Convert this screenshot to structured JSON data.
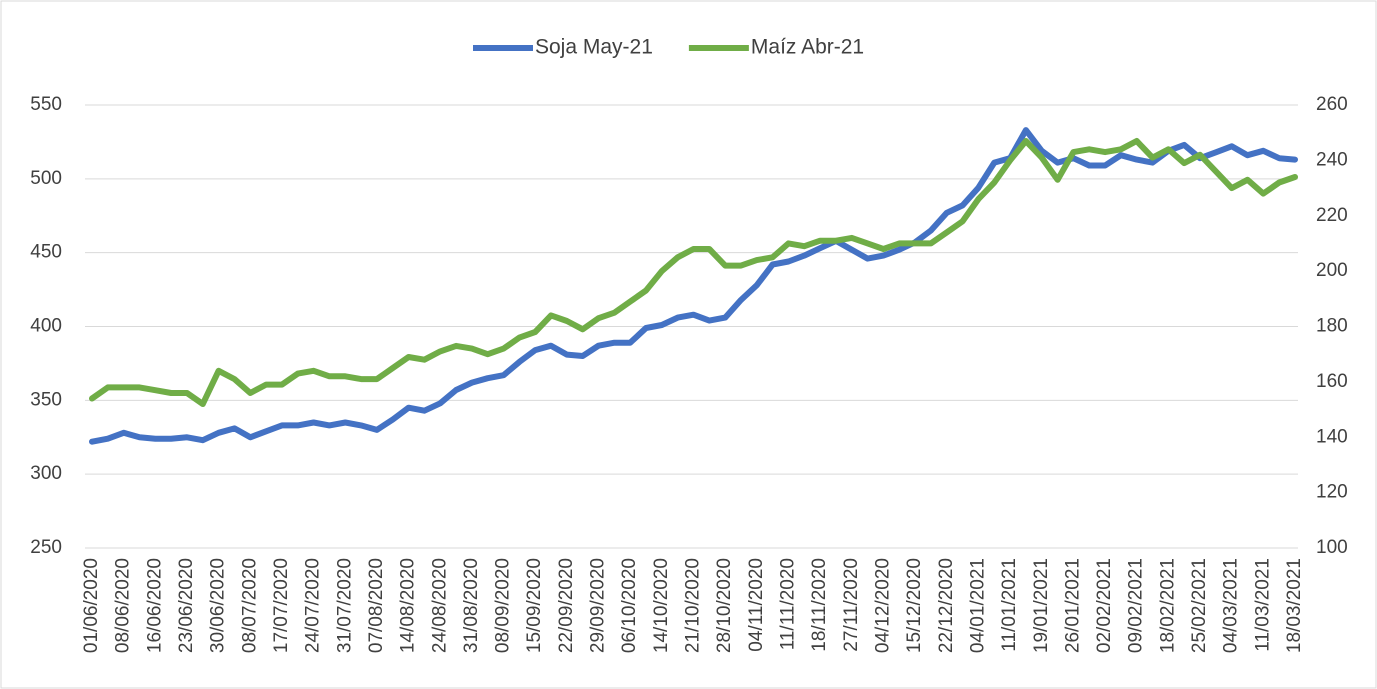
{
  "chart_data": {
    "type": "line",
    "categories": [
      "01/06/2020",
      null,
      "08/06/2020",
      null,
      "16/06/2020",
      null,
      "23/06/2020",
      null,
      "30/06/2020",
      null,
      "08/07/2020",
      null,
      "17/07/2020",
      null,
      "24/07/2020",
      null,
      "31/07/2020",
      null,
      "07/08/2020",
      null,
      "14/08/2020",
      null,
      "24/08/2020",
      null,
      "31/08/2020",
      null,
      "08/09/2020",
      null,
      "15/09/2020",
      null,
      "22/09/2020",
      null,
      "29/09/2020",
      null,
      "06/10/2020",
      null,
      "14/10/2020",
      null,
      "21/10/2020",
      null,
      "28/10/2020",
      null,
      "04/11/2020",
      null,
      "11/11/2020",
      null,
      "18/11/2020",
      null,
      "27/11/2020",
      null,
      "04/12/2020",
      null,
      "15/12/2020",
      null,
      "22/12/2020",
      null,
      "04/01/2021",
      null,
      "11/01/2021",
      null,
      "19/01/2021",
      null,
      "26/01/2021",
      null,
      "02/02/2021",
      null,
      "09/02/2021",
      null,
      "18/02/2021",
      null,
      "25/02/2021",
      null,
      "04/03/2021",
      null,
      "11/03/2021",
      null,
      "18/03/2021"
    ],
    "series": [
      {
        "name": "Soja May-21",
        "color": "#4472c4",
        "values": [
          322,
          324,
          328,
          325,
          324,
          324,
          325,
          323,
          328,
          331,
          325,
          329,
          333,
          333,
          335,
          333,
          335,
          333,
          330,
          337,
          345,
          343,
          348,
          357,
          362,
          365,
          367,
          376,
          384,
          387,
          381,
          380,
          387,
          389,
          389,
          399,
          401,
          406,
          408,
          404,
          406,
          418,
          428,
          442,
          444,
          448,
          453,
          458,
          452,
          446,
          448,
          452,
          457,
          465,
          477,
          482,
          494,
          511,
          514,
          533,
          519,
          511,
          514,
          509,
          509,
          516,
          513,
          511,
          519,
          523,
          514,
          518,
          522,
          516,
          519,
          514,
          513
        ]
      },
      {
        "name": "Maíz Abr-21",
        "color": "#70ad47",
        "axis": "y2",
        "values": [
          154,
          158,
          158,
          158,
          157,
          156,
          156,
          152,
          164,
          161,
          156,
          159,
          159,
          163,
          164,
          162,
          162,
          161,
          161,
          165,
          169,
          168,
          171,
          173,
          172,
          170,
          172,
          176,
          178,
          184,
          182,
          179,
          183,
          185,
          189,
          193,
          200,
          205,
          208,
          208,
          202,
          202,
          204,
          205,
          210,
          209,
          211,
          211,
          212,
          210,
          208,
          210,
          210,
          210,
          214,
          218,
          226,
          232,
          240,
          247,
          241,
          233,
          243,
          244,
          243,
          244,
          247,
          241,
          244,
          239,
          242,
          236,
          230,
          233,
          228,
          232,
          234
        ]
      }
    ],
    "ylim": [
      250,
      550
    ],
    "yticks": [
      250,
      300,
      350,
      400,
      450,
      500,
      550
    ],
    "y2lim": [
      100,
      260
    ],
    "y2ticks": [
      100,
      120,
      140,
      160,
      180,
      200,
      220,
      240,
      260
    ],
    "grid": true,
    "legend": "top"
  }
}
